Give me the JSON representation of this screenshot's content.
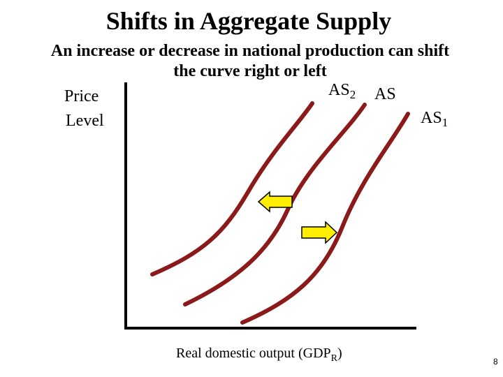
{
  "header": {
    "title": "Shifts in Aggregate Supply",
    "subtitle_lines": [
      "An increase or decrease in national production can shift",
      "the curve right or left"
    ]
  },
  "axes": {
    "y_label_lines": [
      "Price",
      "Level"
    ],
    "x_label": {
      "text": "Real domestic output (GDP",
      "sub": "R",
      "end": ")"
    }
  },
  "curves": [
    {
      "base": "AS",
      "sub": "2"
    },
    {
      "base": "AS",
      "sub": ""
    },
    {
      "base": "AS",
      "sub": "1"
    }
  ],
  "footer": {
    "page": "8"
  }
}
